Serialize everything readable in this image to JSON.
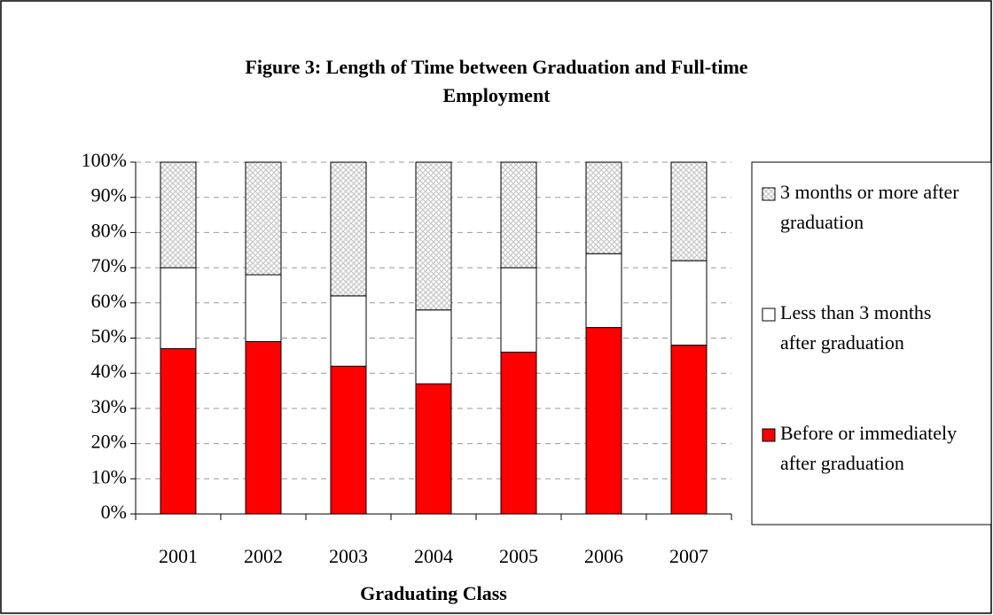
{
  "chart_data": {
    "type": "stacked_bar",
    "title": "Figure 3:  Length of Time between Graduation and Full-time Employment",
    "x_label": "Graduating Class",
    "categories": [
      "2001",
      "2002",
      "2003",
      "2004",
      "2005",
      "2006",
      "2007"
    ],
    "series": [
      {
        "name": "Before or immediately after graduation",
        "color": "#ff0000",
        "values": [
          47,
          49,
          42,
          37,
          46,
          53,
          48
        ]
      },
      {
        "name": "Less than 3 months after graduation",
        "color": "#ffffff",
        "values": [
          23,
          19,
          20,
          21,
          24,
          21,
          24
        ]
      },
      {
        "name": "3 months or more after graduation",
        "color": "#c8c8c8",
        "values": [
          30,
          32,
          38,
          42,
          30,
          26,
          28
        ]
      }
    ],
    "ylim": [
      0,
      100
    ],
    "yticks": [
      {
        "value": 0,
        "label": "0%"
      },
      {
        "value": 10,
        "label": "10%"
      },
      {
        "value": 20,
        "label": "20%"
      },
      {
        "value": 30,
        "label": "30%"
      },
      {
        "value": 40,
        "label": "40%"
      },
      {
        "value": 50,
        "label": "50%"
      },
      {
        "value": 60,
        "label": "60%"
      },
      {
        "value": 70,
        "label": "70%"
      },
      {
        "value": 80,
        "label": "80%"
      },
      {
        "value": 90,
        "label": "90%"
      },
      {
        "value": 100,
        "label": "100%"
      }
    ],
    "grid": true
  }
}
